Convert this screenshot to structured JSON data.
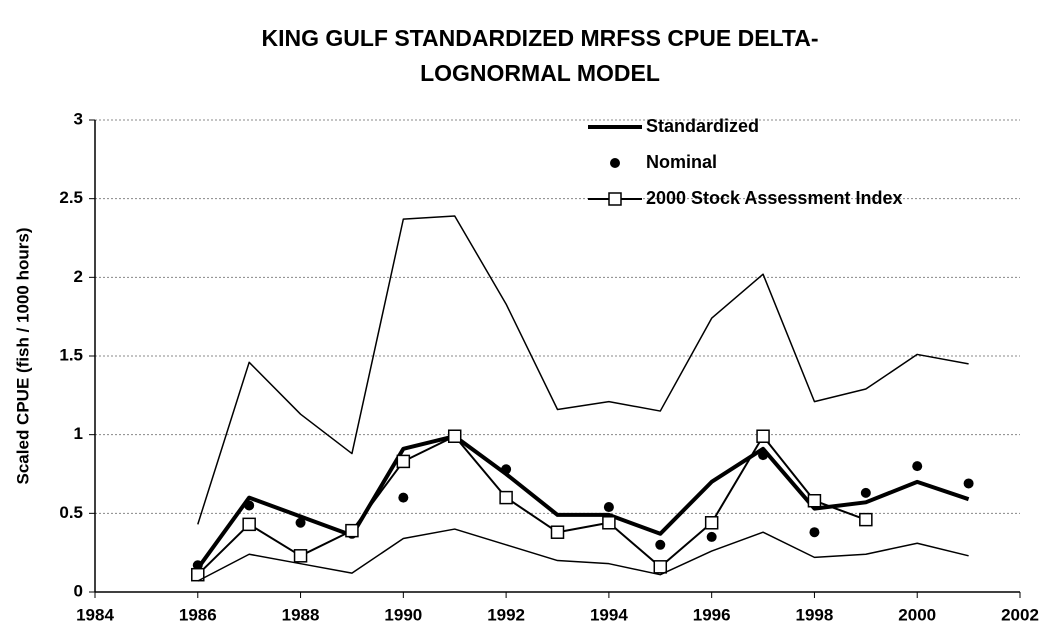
{
  "chart_data": {
    "type": "line",
    "title": [
      "KING GULF STANDARDIZED MRFSS CPUE DELTA-",
      "LOGNORMAL MODEL"
    ],
    "y_label": "Scaled CPUE (fish / 1000 hours)",
    "x": [
      1986,
      1987,
      1988,
      1989,
      1990,
      1991,
      1992,
      1993,
      1994,
      1995,
      1996,
      1997,
      1998,
      1999,
      2000,
      2001
    ],
    "xlim": [
      1984,
      2002
    ],
    "xticks": [
      1984,
      1986,
      1988,
      1990,
      1992,
      1994,
      1996,
      1998,
      2000,
      2002
    ],
    "ylim": [
      0,
      3
    ],
    "yticks": [
      0,
      0.5,
      1,
      1.5,
      2,
      2.5,
      3
    ],
    "grid": true,
    "legend": "top-right",
    "series": [
      {
        "name": "Standardized",
        "color": "#000000",
        "style": "line",
        "width": 4,
        "values": [
          0.15,
          0.6,
          0.48,
          0.36,
          0.91,
          0.99,
          0.75,
          0.49,
          0.49,
          0.37,
          0.7,
          0.91,
          0.53,
          0.57,
          0.7,
          0.59
        ]
      },
      {
        "name": "Nominal",
        "color": "#000000",
        "style": "markers",
        "values": [
          0.17,
          0.55,
          0.44,
          0.37,
          0.6,
          0.98,
          0.78,
          0.37,
          0.54,
          0.3,
          0.35,
          0.87,
          0.38,
          0.63,
          0.8,
          0.69
        ]
      },
      {
        "name": "2000 Stock Assessment Index",
        "color": "#000000",
        "style": "line-squares",
        "width": 2,
        "values": [
          0.11,
          0.43,
          0.23,
          0.39,
          0.83,
          0.99,
          0.6,
          0.38,
          0.44,
          0.16,
          0.44,
          0.99,
          0.58,
          0.46,
          null,
          null
        ]
      },
      {
        "color": "#000000",
        "style": "line",
        "width": 1.5,
        "values": [
          0.43,
          1.46,
          1.13,
          0.88,
          2.37,
          2.39,
          1.83,
          1.16,
          1.21,
          1.15,
          1.74,
          2.02,
          1.21,
          1.29,
          1.51,
          1.45
        ]
      },
      {
        "color": "#000000",
        "style": "line",
        "width": 1.5,
        "values": [
          0.07,
          0.24,
          0.18,
          0.12,
          0.34,
          0.4,
          0.3,
          0.2,
          0.18,
          0.11,
          0.26,
          0.38,
          0.22,
          0.24,
          0.31,
          0.23
        ]
      }
    ]
  }
}
